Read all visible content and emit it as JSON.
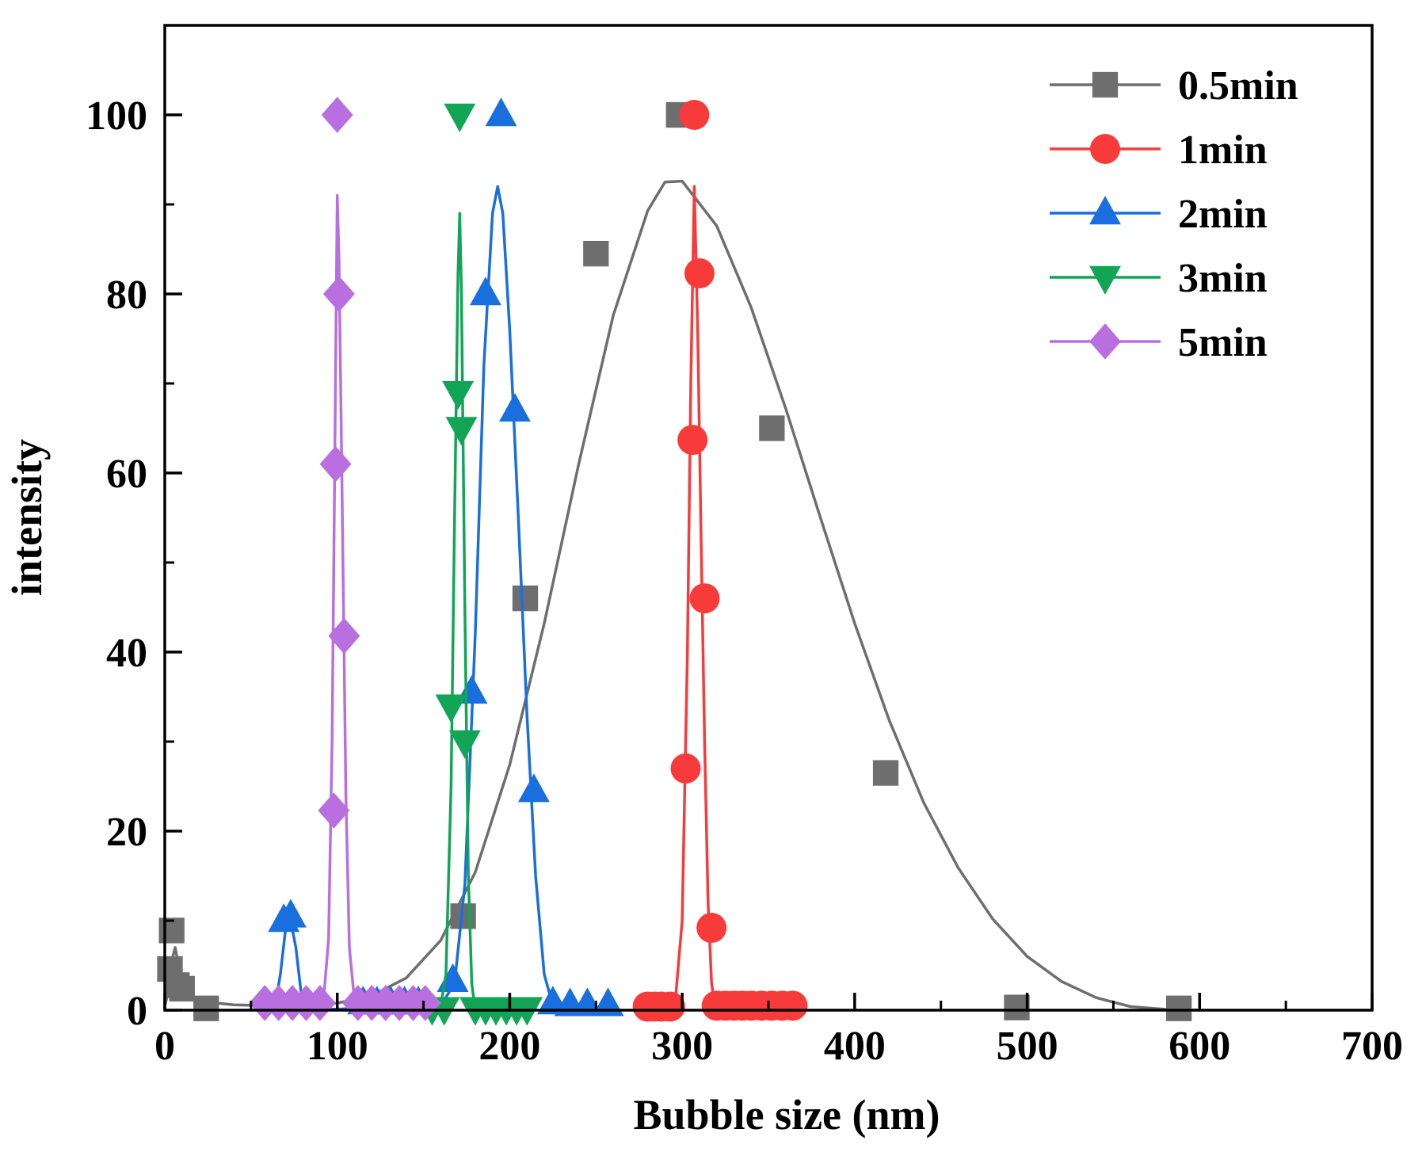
{
  "chart_data": {
    "type": "line",
    "title": "",
    "xlabel": "Bubble size (nm)",
    "ylabel": "intensity",
    "xlim": [
      0,
      700
    ],
    "ylim": [
      0,
      110
    ],
    "xticks": [
      0,
      100,
      200,
      300,
      400,
      500,
      600,
      700
    ],
    "yticks": [
      0,
      20,
      40,
      60,
      80,
      100
    ],
    "grid": false,
    "legend_position": "top-right",
    "series": [
      {
        "name": "0.5min",
        "color": "#6e6e6e",
        "marker": "square",
        "points": [
          {
            "x": 3,
            "y": 4.6
          },
          {
            "x": 4,
            "y": 8.9
          },
          {
            "x": 7,
            "y": 2.8
          },
          {
            "x": 10,
            "y": 2.4
          },
          {
            "x": 24,
            "y": 0.2
          },
          {
            "x": 173,
            "y": 10.5
          },
          {
            "x": 209,
            "y": 46
          },
          {
            "x": 250,
            "y": 84.5
          },
          {
            "x": 298,
            "y": 100
          },
          {
            "x": 352,
            "y": 65
          },
          {
            "x": 418,
            "y": 26.5
          },
          {
            "x": 494,
            "y": 0.3
          },
          {
            "x": 588,
            "y": 0.2
          }
        ],
        "fit": [
          {
            "x": 0,
            "y": 0.5
          },
          {
            "x": 2,
            "y": 2
          },
          {
            "x": 4,
            "y": 5.5
          },
          {
            "x": 6,
            "y": 7
          },
          {
            "x": 8,
            "y": 5
          },
          {
            "x": 10,
            "y": 2.5
          },
          {
            "x": 14,
            "y": 1.5
          },
          {
            "x": 20,
            "y": 1
          },
          {
            "x": 40,
            "y": 0.6
          },
          {
            "x": 60,
            "y": 0.5
          },
          {
            "x": 80,
            "y": 0.6
          },
          {
            "x": 100,
            "y": 0.8
          },
          {
            "x": 120,
            "y": 1.6
          },
          {
            "x": 140,
            "y": 3.6
          },
          {
            "x": 160,
            "y": 7.8
          },
          {
            "x": 180,
            "y": 15.4
          },
          {
            "x": 200,
            "y": 27.4
          },
          {
            "x": 220,
            "y": 43.2
          },
          {
            "x": 240,
            "y": 61
          },
          {
            "x": 260,
            "y": 77.6
          },
          {
            "x": 280,
            "y": 89.3
          },
          {
            "x": 290,
            "y": 92.5
          },
          {
            "x": 300,
            "y": 92.6
          },
          {
            "x": 320,
            "y": 87.6
          },
          {
            "x": 340,
            "y": 78.5
          },
          {
            "x": 360,
            "y": 67.2
          },
          {
            "x": 380,
            "y": 55.1
          },
          {
            "x": 400,
            "y": 43.2
          },
          {
            "x": 420,
            "y": 32.4
          },
          {
            "x": 440,
            "y": 23.2
          },
          {
            "x": 460,
            "y": 15.9
          },
          {
            "x": 480,
            "y": 10.2
          },
          {
            "x": 500,
            "y": 6
          },
          {
            "x": 520,
            "y": 3.2
          },
          {
            "x": 540,
            "y": 1.4
          },
          {
            "x": 560,
            "y": 0.4
          },
          {
            "x": 580,
            "y": 0.1
          },
          {
            "x": 600,
            "y": 0
          }
        ]
      },
      {
        "name": "1min",
        "color": "#f73b3b",
        "marker": "circle",
        "points": [
          {
            "x": 280,
            "y": 0.4
          },
          {
            "x": 284,
            "y": 0.4
          },
          {
            "x": 288,
            "y": 0.4
          },
          {
            "x": 293,
            "y": 0.4
          },
          {
            "x": 302,
            "y": 27
          },
          {
            "x": 306,
            "y": 63.7
          },
          {
            "x": 307,
            "y": 100
          },
          {
            "x": 310,
            "y": 82.3
          },
          {
            "x": 313,
            "y": 46
          },
          {
            "x": 317,
            "y": 9.2
          },
          {
            "x": 320,
            "y": 0.5
          },
          {
            "x": 325,
            "y": 0.5
          },
          {
            "x": 330,
            "y": 0.5
          },
          {
            "x": 335,
            "y": 0.5
          },
          {
            "x": 340,
            "y": 0.5
          },
          {
            "x": 346,
            "y": 0.5
          },
          {
            "x": 352,
            "y": 0.5
          },
          {
            "x": 358,
            "y": 0.5
          },
          {
            "x": 364,
            "y": 0.5
          }
        ],
        "fit": [
          {
            "x": 280,
            "y": 0
          },
          {
            "x": 292,
            "y": 0
          },
          {
            "x": 296,
            "y": 1
          },
          {
            "x": 300,
            "y": 10
          },
          {
            "x": 303,
            "y": 40
          },
          {
            "x": 305,
            "y": 70
          },
          {
            "x": 307,
            "y": 92
          },
          {
            "x": 309,
            "y": 76
          },
          {
            "x": 311,
            "y": 52
          },
          {
            "x": 313,
            "y": 30
          },
          {
            "x": 315,
            "y": 12
          },
          {
            "x": 317,
            "y": 3
          },
          {
            "x": 319,
            "y": 0.5
          },
          {
            "x": 322,
            "y": 0
          },
          {
            "x": 366,
            "y": 0
          }
        ]
      },
      {
        "name": "2min",
        "color": "#1a6fdf",
        "marker": "triangle-up",
        "points": [
          {
            "x": 69,
            "y": 10
          },
          {
            "x": 73,
            "y": 10.5
          },
          {
            "x": 115,
            "y": 0.8
          },
          {
            "x": 123,
            "y": 0.8
          },
          {
            "x": 131,
            "y": 0.8
          },
          {
            "x": 139,
            "y": 0.8
          },
          {
            "x": 147,
            "y": 0.8
          },
          {
            "x": 167,
            "y": 3.3
          },
          {
            "x": 178,
            "y": 35.5
          },
          {
            "x": 186,
            "y": 80
          },
          {
            "x": 195,
            "y": 100
          },
          {
            "x": 203,
            "y": 67
          },
          {
            "x": 214,
            "y": 24.5
          },
          {
            "x": 225,
            "y": 0.8
          },
          {
            "x": 235,
            "y": 0.6
          },
          {
            "x": 245,
            "y": 0.6
          },
          {
            "x": 257,
            "y": 0.6
          }
        ],
        "fit": [
          {
            "x": 60,
            "y": 0
          },
          {
            "x": 64,
            "y": 0.5
          },
          {
            "x": 67,
            "y": 4
          },
          {
            "x": 70,
            "y": 9
          },
          {
            "x": 73,
            "y": 10
          },
          {
            "x": 76,
            "y": 7
          },
          {
            "x": 79,
            "y": 2
          },
          {
            "x": 82,
            "y": 0
          },
          {
            "x": 160,
            "y": 0.5
          },
          {
            "x": 168,
            "y": 3
          },
          {
            "x": 174,
            "y": 14
          },
          {
            "x": 180,
            "y": 42
          },
          {
            "x": 185,
            "y": 72
          },
          {
            "x": 190,
            "y": 89
          },
          {
            "x": 193,
            "y": 92
          },
          {
            "x": 196,
            "y": 89
          },
          {
            "x": 200,
            "y": 76
          },
          {
            "x": 205,
            "y": 55
          },
          {
            "x": 210,
            "y": 33
          },
          {
            "x": 215,
            "y": 15
          },
          {
            "x": 220,
            "y": 4
          },
          {
            "x": 225,
            "y": 0.5
          },
          {
            "x": 230,
            "y": 0
          },
          {
            "x": 258,
            "y": 0
          }
        ]
      },
      {
        "name": "3min",
        "color": "#12a555",
        "marker": "triangle-down",
        "points": [
          {
            "x": 155,
            "y": 0.2
          },
          {
            "x": 162,
            "y": 0.2
          },
          {
            "x": 166,
            "y": 34
          },
          {
            "x": 170,
            "y": 69
          },
          {
            "x": 171,
            "y": 100
          },
          {
            "x": 172,
            "y": 65
          },
          {
            "x": 174,
            "y": 30
          },
          {
            "x": 180,
            "y": 0.2
          },
          {
            "x": 186,
            "y": 0.2
          },
          {
            "x": 192,
            "y": 0.2
          },
          {
            "x": 198,
            "y": 0.2
          },
          {
            "x": 204,
            "y": 0.2
          },
          {
            "x": 210,
            "y": 0.2
          }
        ],
        "fit": [
          {
            "x": 155,
            "y": 0
          },
          {
            "x": 160,
            "y": 0.5
          },
          {
            "x": 163,
            "y": 4
          },
          {
            "x": 166,
            "y": 25
          },
          {
            "x": 168,
            "y": 55
          },
          {
            "x": 170,
            "y": 82
          },
          {
            "x": 171,
            "y": 89
          },
          {
            "x": 172,
            "y": 80
          },
          {
            "x": 174,
            "y": 45
          },
          {
            "x": 176,
            "y": 15
          },
          {
            "x": 178,
            "y": 3
          },
          {
            "x": 180,
            "y": 0
          },
          {
            "x": 212,
            "y": 0
          }
        ]
      },
      {
        "name": "5min",
        "color": "#b96fe0",
        "marker": "diamond",
        "points": [
          {
            "x": 58,
            "y": 0.8
          },
          {
            "x": 66,
            "y": 0.8
          },
          {
            "x": 74,
            "y": 0.8
          },
          {
            "x": 82,
            "y": 0.8
          },
          {
            "x": 90,
            "y": 0.8
          },
          {
            "x": 98,
            "y": 22.3
          },
          {
            "x": 99,
            "y": 61
          },
          {
            "x": 100,
            "y": 100
          },
          {
            "x": 101,
            "y": 80
          },
          {
            "x": 104,
            "y": 41.8
          },
          {
            "x": 112,
            "y": 0.8
          },
          {
            "x": 120,
            "y": 0.8
          },
          {
            "x": 128,
            "y": 0.8
          },
          {
            "x": 136,
            "y": 0.8
          },
          {
            "x": 144,
            "y": 0.8
          },
          {
            "x": 151,
            "y": 0.8
          }
        ],
        "fit": [
          {
            "x": 55,
            "y": 0
          },
          {
            "x": 88,
            "y": 0
          },
          {
            "x": 92,
            "y": 1
          },
          {
            "x": 95,
            "y": 8
          },
          {
            "x": 97,
            "y": 30
          },
          {
            "x": 99,
            "y": 70
          },
          {
            "x": 100,
            "y": 91
          },
          {
            "x": 101,
            "y": 84
          },
          {
            "x": 103,
            "y": 55
          },
          {
            "x": 105,
            "y": 24
          },
          {
            "x": 107,
            "y": 7
          },
          {
            "x": 110,
            "y": 1
          },
          {
            "x": 114,
            "y": 0
          },
          {
            "x": 155,
            "y": 0
          }
        ]
      }
    ]
  }
}
